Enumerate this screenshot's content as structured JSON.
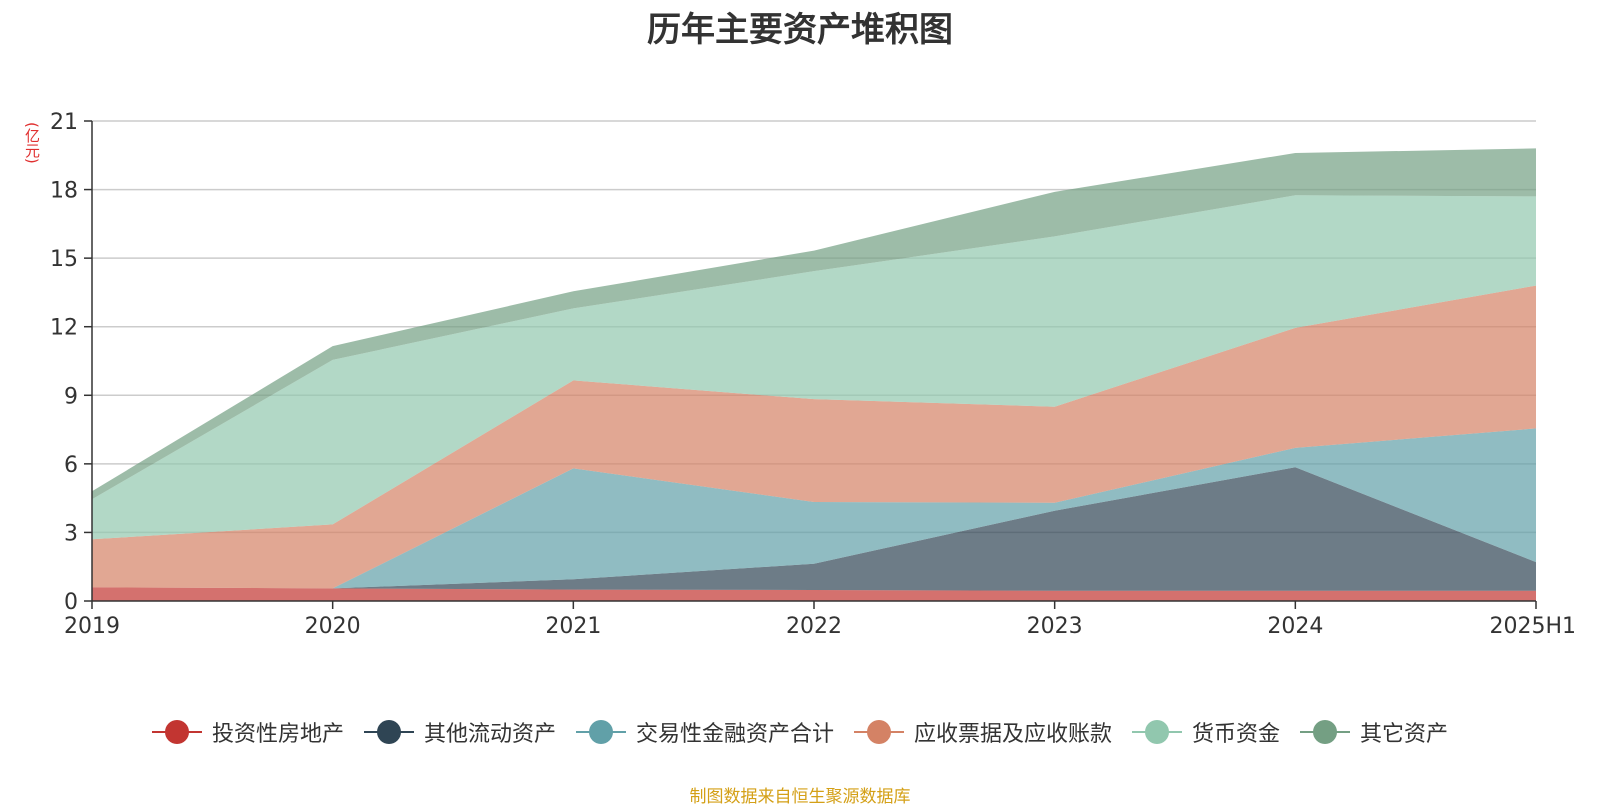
{
  "chart_data": {
    "type": "area",
    "title": "历年主要资产堆积图",
    "unit_label": "(亿元)",
    "categories": [
      "2019",
      "2020",
      "2021",
      "2022",
      "2023",
      "2024",
      "2025H1"
    ],
    "ylim": [
      0,
      21
    ],
    "yticks": [
      "0",
      "3",
      "6",
      "9",
      "12",
      "15",
      "18",
      "21"
    ],
    "grid": true,
    "legend_position": "bottom",
    "stacked": true,
    "series": [
      {
        "name": "投资性房地产",
        "color": "#c23531",
        "values": [
          0.6,
          0.55,
          0.5,
          0.48,
          0.45,
          0.45,
          0.45
        ]
      },
      {
        "name": "其他流动资产",
        "color": "#2f4554",
        "values": [
          0.0,
          0.0,
          0.45,
          1.15,
          3.5,
          5.4,
          1.25
        ]
      },
      {
        "name": "交易性金融资产合计",
        "color": "#61a0a8",
        "values": [
          0.0,
          0.0,
          4.85,
          2.7,
          0.35,
          0.85,
          5.85
        ]
      },
      {
        "name": "应收票据及应收账款",
        "color": "#d48265",
        "values": [
          2.1,
          2.8,
          3.85,
          4.5,
          4.2,
          5.25,
          6.25
        ]
      },
      {
        "name": "货币资金",
        "color": "#91c7ae",
        "values": [
          1.75,
          7.2,
          3.15,
          5.6,
          7.45,
          5.8,
          3.9
        ]
      },
      {
        "name": "其它资产",
        "color": "#749f83",
        "values": [
          0.35,
          0.6,
          0.75,
          0.9,
          1.95,
          1.85,
          2.1
        ]
      }
    ]
  },
  "source_note": "制图数据来自恒生聚源数据库"
}
